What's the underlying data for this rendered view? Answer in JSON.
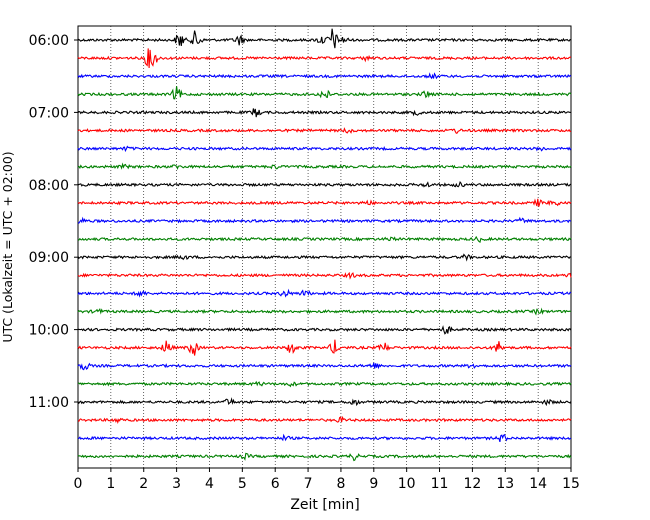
{
  "chart_data": {
    "type": "line",
    "title": "",
    "xlabel": "Zeit  [min]",
    "ylabel": "UTC (Lokalzeit = UTC + 02:00)",
    "xlim": [
      0,
      15
    ],
    "x_ticks": [
      0,
      1,
      2,
      3,
      4,
      5,
      6,
      7,
      8,
      9,
      10,
      11,
      12,
      13,
      14,
      15
    ],
    "x_tick_labels": [
      "0",
      "1",
      "2",
      "3",
      "4",
      "5",
      "6",
      "7",
      "8",
      "9",
      "10",
      "11",
      "12",
      "13",
      "14",
      "15"
    ],
    "y_tick_labels": [
      "06:00",
      "07:00",
      "08:00",
      "09:00",
      "10:00",
      "11:00"
    ],
    "y_tick_rows": [
      0,
      4,
      8,
      12,
      16,
      20
    ],
    "grid": "vertical dotted",
    "row_count": 24,
    "row_color_cycle": [
      "#000000",
      "#ff0000",
      "#0000ff",
      "#008000"
    ],
    "series": [
      {
        "start": "06:00",
        "events": [
          [
            3.1,
            8
          ],
          [
            3.6,
            10
          ],
          [
            4.9,
            5
          ],
          [
            7.4,
            4
          ],
          [
            7.75,
            12
          ],
          [
            8.1,
            3
          ]
        ]
      },
      {
        "start": "06:15",
        "events": [
          [
            2.15,
            8
          ],
          [
            2.3,
            6
          ],
          [
            8.8,
            2
          ]
        ]
      },
      {
        "start": "06:30",
        "events": [
          [
            10.8,
            2
          ]
        ]
      },
      {
        "start": "06:45",
        "events": [
          [
            3.0,
            7
          ],
          [
            7.5,
            6
          ],
          [
            10.6,
            3
          ]
        ]
      },
      {
        "start": "07:00",
        "events": [
          [
            5.4,
            4
          ],
          [
            10.3,
            2
          ]
        ]
      },
      {
        "start": "07:15",
        "events": [
          [
            8.2,
            2
          ],
          [
            11.5,
            2
          ]
        ]
      },
      {
        "start": "07:30",
        "events": [
          [
            1.5,
            1.5
          ],
          [
            14.1,
            1.5
          ]
        ]
      },
      {
        "start": "07:45",
        "events": [
          [
            1.4,
            1.5
          ],
          [
            3.0,
            1.5
          ],
          [
            6.0,
            1.5
          ]
        ]
      },
      {
        "start": "08:00",
        "events": [
          [
            10.6,
            2
          ],
          [
            11.6,
            2
          ]
        ]
      },
      {
        "start": "08:15",
        "events": [
          [
            8.8,
            2
          ],
          [
            14.0,
            3
          ],
          [
            14.5,
            3
          ]
        ]
      },
      {
        "start": "08:30",
        "events": [
          [
            0.1,
            2
          ],
          [
            13.5,
            2
          ]
        ]
      },
      {
        "start": "08:45",
        "events": [
          [
            9.5,
            1.5
          ],
          [
            12.2,
            2
          ]
        ]
      },
      {
        "start": "09:00",
        "events": [
          [
            3.2,
            2
          ],
          [
            11.8,
            2
          ]
        ]
      },
      {
        "start": "09:15",
        "events": [
          [
            8.3,
            2
          ],
          [
            15.0,
            2
          ]
        ]
      },
      {
        "start": "09:30",
        "events": [
          [
            1.9,
            3
          ],
          [
            6.3,
            4
          ],
          [
            6.9,
            3
          ]
        ]
      },
      {
        "start": "09:45",
        "events": [
          [
            0.6,
            2
          ],
          [
            14.0,
            2
          ]
        ]
      },
      {
        "start": "10:00",
        "events": [
          [
            11.2,
            4
          ]
        ]
      },
      {
        "start": "10:15",
        "events": [
          [
            2.7,
            7
          ],
          [
            3.5,
            8
          ],
          [
            6.5,
            6
          ],
          [
            7.8,
            7
          ],
          [
            9.3,
            5
          ],
          [
            12.8,
            6
          ]
        ]
      },
      {
        "start": "10:30",
        "events": [
          [
            0.2,
            4
          ],
          [
            9.0,
            3
          ],
          [
            12.0,
            2
          ]
        ]
      },
      {
        "start": "10:45",
        "events": [
          [
            5.5,
            1.5
          ],
          [
            6.5,
            1.5
          ]
        ]
      },
      {
        "start": "11:00",
        "events": [
          [
            4.6,
            3
          ],
          [
            8.4,
            3
          ],
          [
            14.3,
            2
          ]
        ]
      },
      {
        "start": "11:15",
        "events": [
          [
            1.2,
            2
          ],
          [
            8.0,
            2
          ]
        ]
      },
      {
        "start": "11:30",
        "events": [
          [
            6.3,
            2
          ],
          [
            12.9,
            4
          ]
        ]
      },
      {
        "start": "11:45",
        "events": [
          [
            5.1,
            2
          ],
          [
            8.4,
            3
          ]
        ]
      }
    ]
  }
}
